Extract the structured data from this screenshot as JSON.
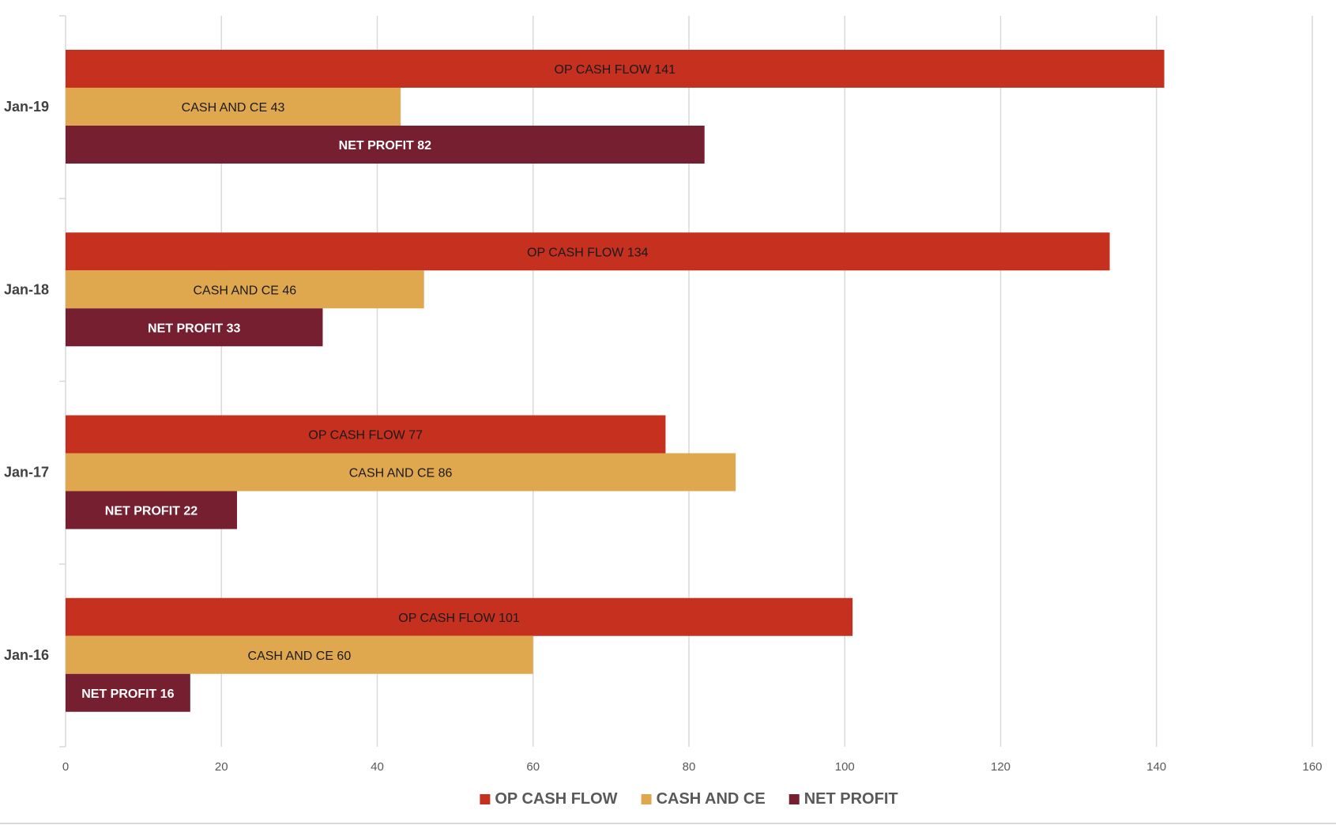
{
  "chart_data": {
    "type": "bar",
    "orientation": "horizontal",
    "categories": [
      "Jan-19",
      "Jan-18",
      "Jan-17",
      "Jan-16"
    ],
    "series": [
      {
        "name": "OP CASH FLOW",
        "color": "#C5301F",
        "label_color": "#1a1a1a",
        "label_bold": false,
        "values": [
          141,
          134,
          77,
          101
        ],
        "data_labels": [
          "OP CASH FLOW 141",
          "OP CASH FLOW 134",
          "OP CASH FLOW 77",
          "OP CASH FLOW 101"
        ]
      },
      {
        "name": "CASH AND CE",
        "color": "#E0A84E",
        "label_color": "#1a1a1a",
        "label_bold": false,
        "values": [
          43,
          46,
          86,
          60
        ],
        "data_labels": [
          "CASH AND CE 43",
          "CASH AND CE 46",
          "CASH AND CE 86",
          "CASH AND CE 60"
        ]
      },
      {
        "name": "NET PROFIT",
        "color": "#751F30",
        "label_color": "#ffffff",
        "label_bold": true,
        "values": [
          82,
          33,
          22,
          16
        ],
        "data_labels": [
          "NET PROFIT 82",
          "NET PROFIT 33",
          "NET PROFIT 22",
          "NET PROFIT 16"
        ]
      }
    ],
    "xlim": [
      0,
      160
    ],
    "xticks": [
      0,
      20,
      40,
      60,
      80,
      100,
      120,
      140,
      160
    ],
    "xtick_labels": [
      "0",
      "20",
      "40",
      "60",
      "80",
      "100",
      "120",
      "140",
      "160"
    ],
    "grid": "vertical",
    "legend": "bottom",
    "gridline_color": "#D9D9D9"
  }
}
